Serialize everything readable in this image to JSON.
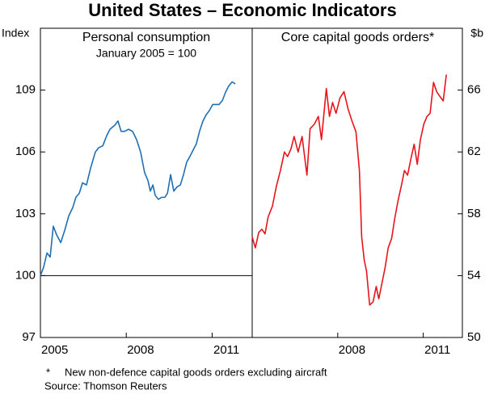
{
  "title": "United States – Economic Indicators",
  "footnote": {
    "marker": "*",
    "text": "New non-defence capital goods orders excluding aircraft"
  },
  "source": "Source: Thomson Reuters",
  "chart_data": [
    {
      "type": "line",
      "title": "Personal consumption",
      "subtitle": "January 2005 = 100",
      "ylabel": "Index",
      "yaxis_side": "left",
      "color": "#1f6fb5",
      "hline": 100,
      "xlim": [
        2005,
        2012.4
      ],
      "xticks": [
        2005,
        2008,
        2011
      ],
      "ylim": [
        97,
        112
      ],
      "yticks": [
        97,
        100,
        103,
        106,
        109
      ],
      "x": [
        2005.0,
        2005.11,
        2005.23,
        2005.34,
        2005.45,
        2005.56,
        2005.71,
        2005.85,
        2005.99,
        2006.13,
        2006.24,
        2006.36,
        2006.47,
        2006.61,
        2006.75,
        2006.92,
        2007.03,
        2007.18,
        2007.32,
        2007.43,
        2007.6,
        2007.71,
        2007.82,
        2007.94,
        2008.08,
        2008.22,
        2008.36,
        2008.5,
        2008.64,
        2008.76,
        2008.84,
        2008.93,
        2009.01,
        2009.12,
        2009.24,
        2009.35,
        2009.44,
        2009.55,
        2009.66,
        2009.77,
        2009.89,
        2010.0,
        2010.11,
        2010.23,
        2010.34,
        2010.45,
        2010.56,
        2010.68,
        2010.79,
        2010.9,
        2011.02,
        2011.13,
        2011.24,
        2011.36,
        2011.47,
        2011.58,
        2011.7,
        2011.81
      ],
      "values": [
        100.0,
        100.4,
        101.1,
        100.9,
        102.4,
        102.0,
        101.6,
        102.2,
        102.9,
        103.3,
        103.8,
        104.0,
        104.5,
        104.4,
        105.2,
        106.0,
        106.2,
        106.3,
        106.8,
        107.1,
        107.3,
        107.5,
        107.0,
        107.0,
        107.1,
        107.0,
        106.6,
        106.0,
        105.0,
        104.6,
        104.1,
        104.4,
        103.9,
        103.7,
        103.8,
        103.8,
        104.0,
        104.9,
        104.1,
        104.3,
        104.4,
        104.9,
        105.5,
        105.8,
        106.1,
        106.4,
        107.0,
        107.5,
        107.8,
        108.0,
        108.3,
        108.3,
        108.3,
        108.5,
        108.9,
        109.2,
        109.4,
        109.3
      ]
    },
    {
      "type": "line",
      "title": "Core capital goods orders*",
      "ylabel": "$b",
      "yaxis_side": "right",
      "color": "#e8141c",
      "xlim": [
        2005,
        2012.4
      ],
      "xticks": [
        2008,
        2011
      ],
      "ylim": [
        50,
        70
      ],
      "yticks": [
        50,
        54,
        58,
        62,
        66
      ],
      "x": [
        2005.0,
        2005.11,
        2005.23,
        2005.34,
        2005.45,
        2005.56,
        2005.71,
        2005.85,
        2005.99,
        2006.13,
        2006.24,
        2006.36,
        2006.47,
        2006.61,
        2006.75,
        2006.92,
        2007.03,
        2007.18,
        2007.32,
        2007.43,
        2007.6,
        2007.71,
        2007.82,
        2007.94,
        2008.08,
        2008.22,
        2008.36,
        2008.5,
        2008.64,
        2008.76,
        2008.84,
        2008.93,
        2009.01,
        2009.12,
        2009.24,
        2009.35,
        2009.44,
        2009.55,
        2009.66,
        2009.77,
        2009.89,
        2010.0,
        2010.11,
        2010.23,
        2010.34,
        2010.45,
        2010.56,
        2010.68,
        2010.79,
        2010.9,
        2011.02,
        2011.13,
        2011.24,
        2011.36,
        2011.47,
        2011.58,
        2011.7,
        2011.81
      ],
      "values": [
        56.5,
        55.8,
        56.8,
        57.0,
        56.7,
        57.8,
        58.5,
        59.8,
        60.8,
        62.0,
        61.7,
        62.2,
        63.0,
        62.0,
        63.0,
        60.5,
        63.5,
        63.8,
        64.3,
        62.8,
        66.1,
        64.3,
        65.2,
        64.5,
        65.5,
        65.9,
        64.8,
        64.0,
        63.3,
        60.8,
        56.5,
        55.0,
        54.3,
        52.1,
        52.3,
        53.3,
        52.5,
        53.5,
        54.5,
        55.8,
        56.4,
        57.7,
        58.8,
        59.8,
        60.8,
        60.5,
        61.5,
        62.5,
        61.2,
        62.8,
        63.8,
        64.3,
        64.5,
        66.5,
        65.9,
        65.6,
        65.3,
        67.0
      ]
    }
  ]
}
